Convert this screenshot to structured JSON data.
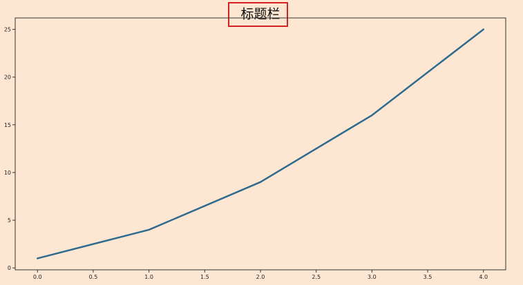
{
  "chart_data": {
    "type": "line",
    "title": "标题栏",
    "xlabel": "",
    "ylabel": "",
    "x": [
      0,
      1,
      2,
      3,
      4
    ],
    "series": [
      {
        "values": [
          1,
          4,
          9,
          16,
          25
        ],
        "color": "#2e6b8e"
      }
    ],
    "xlim": [
      -0.2,
      4.2
    ],
    "ylim": [
      -0.2,
      26.2
    ],
    "xticks": [
      0.0,
      0.5,
      1.0,
      1.5,
      2.0,
      2.5,
      3.0,
      3.5,
      4.0
    ],
    "xtick_labels": [
      "0.0",
      "0.5",
      "1.0",
      "1.5",
      "2.0",
      "2.5",
      "3.0",
      "3.5",
      "4.0"
    ],
    "yticks": [
      0,
      5,
      10,
      15,
      20,
      25
    ],
    "ytick_labels": [
      "0",
      "5",
      "10",
      "15",
      "20",
      "25"
    ],
    "grid": false,
    "legend": "none"
  },
  "colors": {
    "background": "#fde7d3",
    "title_box": "#d42020",
    "axes": "#333333"
  }
}
